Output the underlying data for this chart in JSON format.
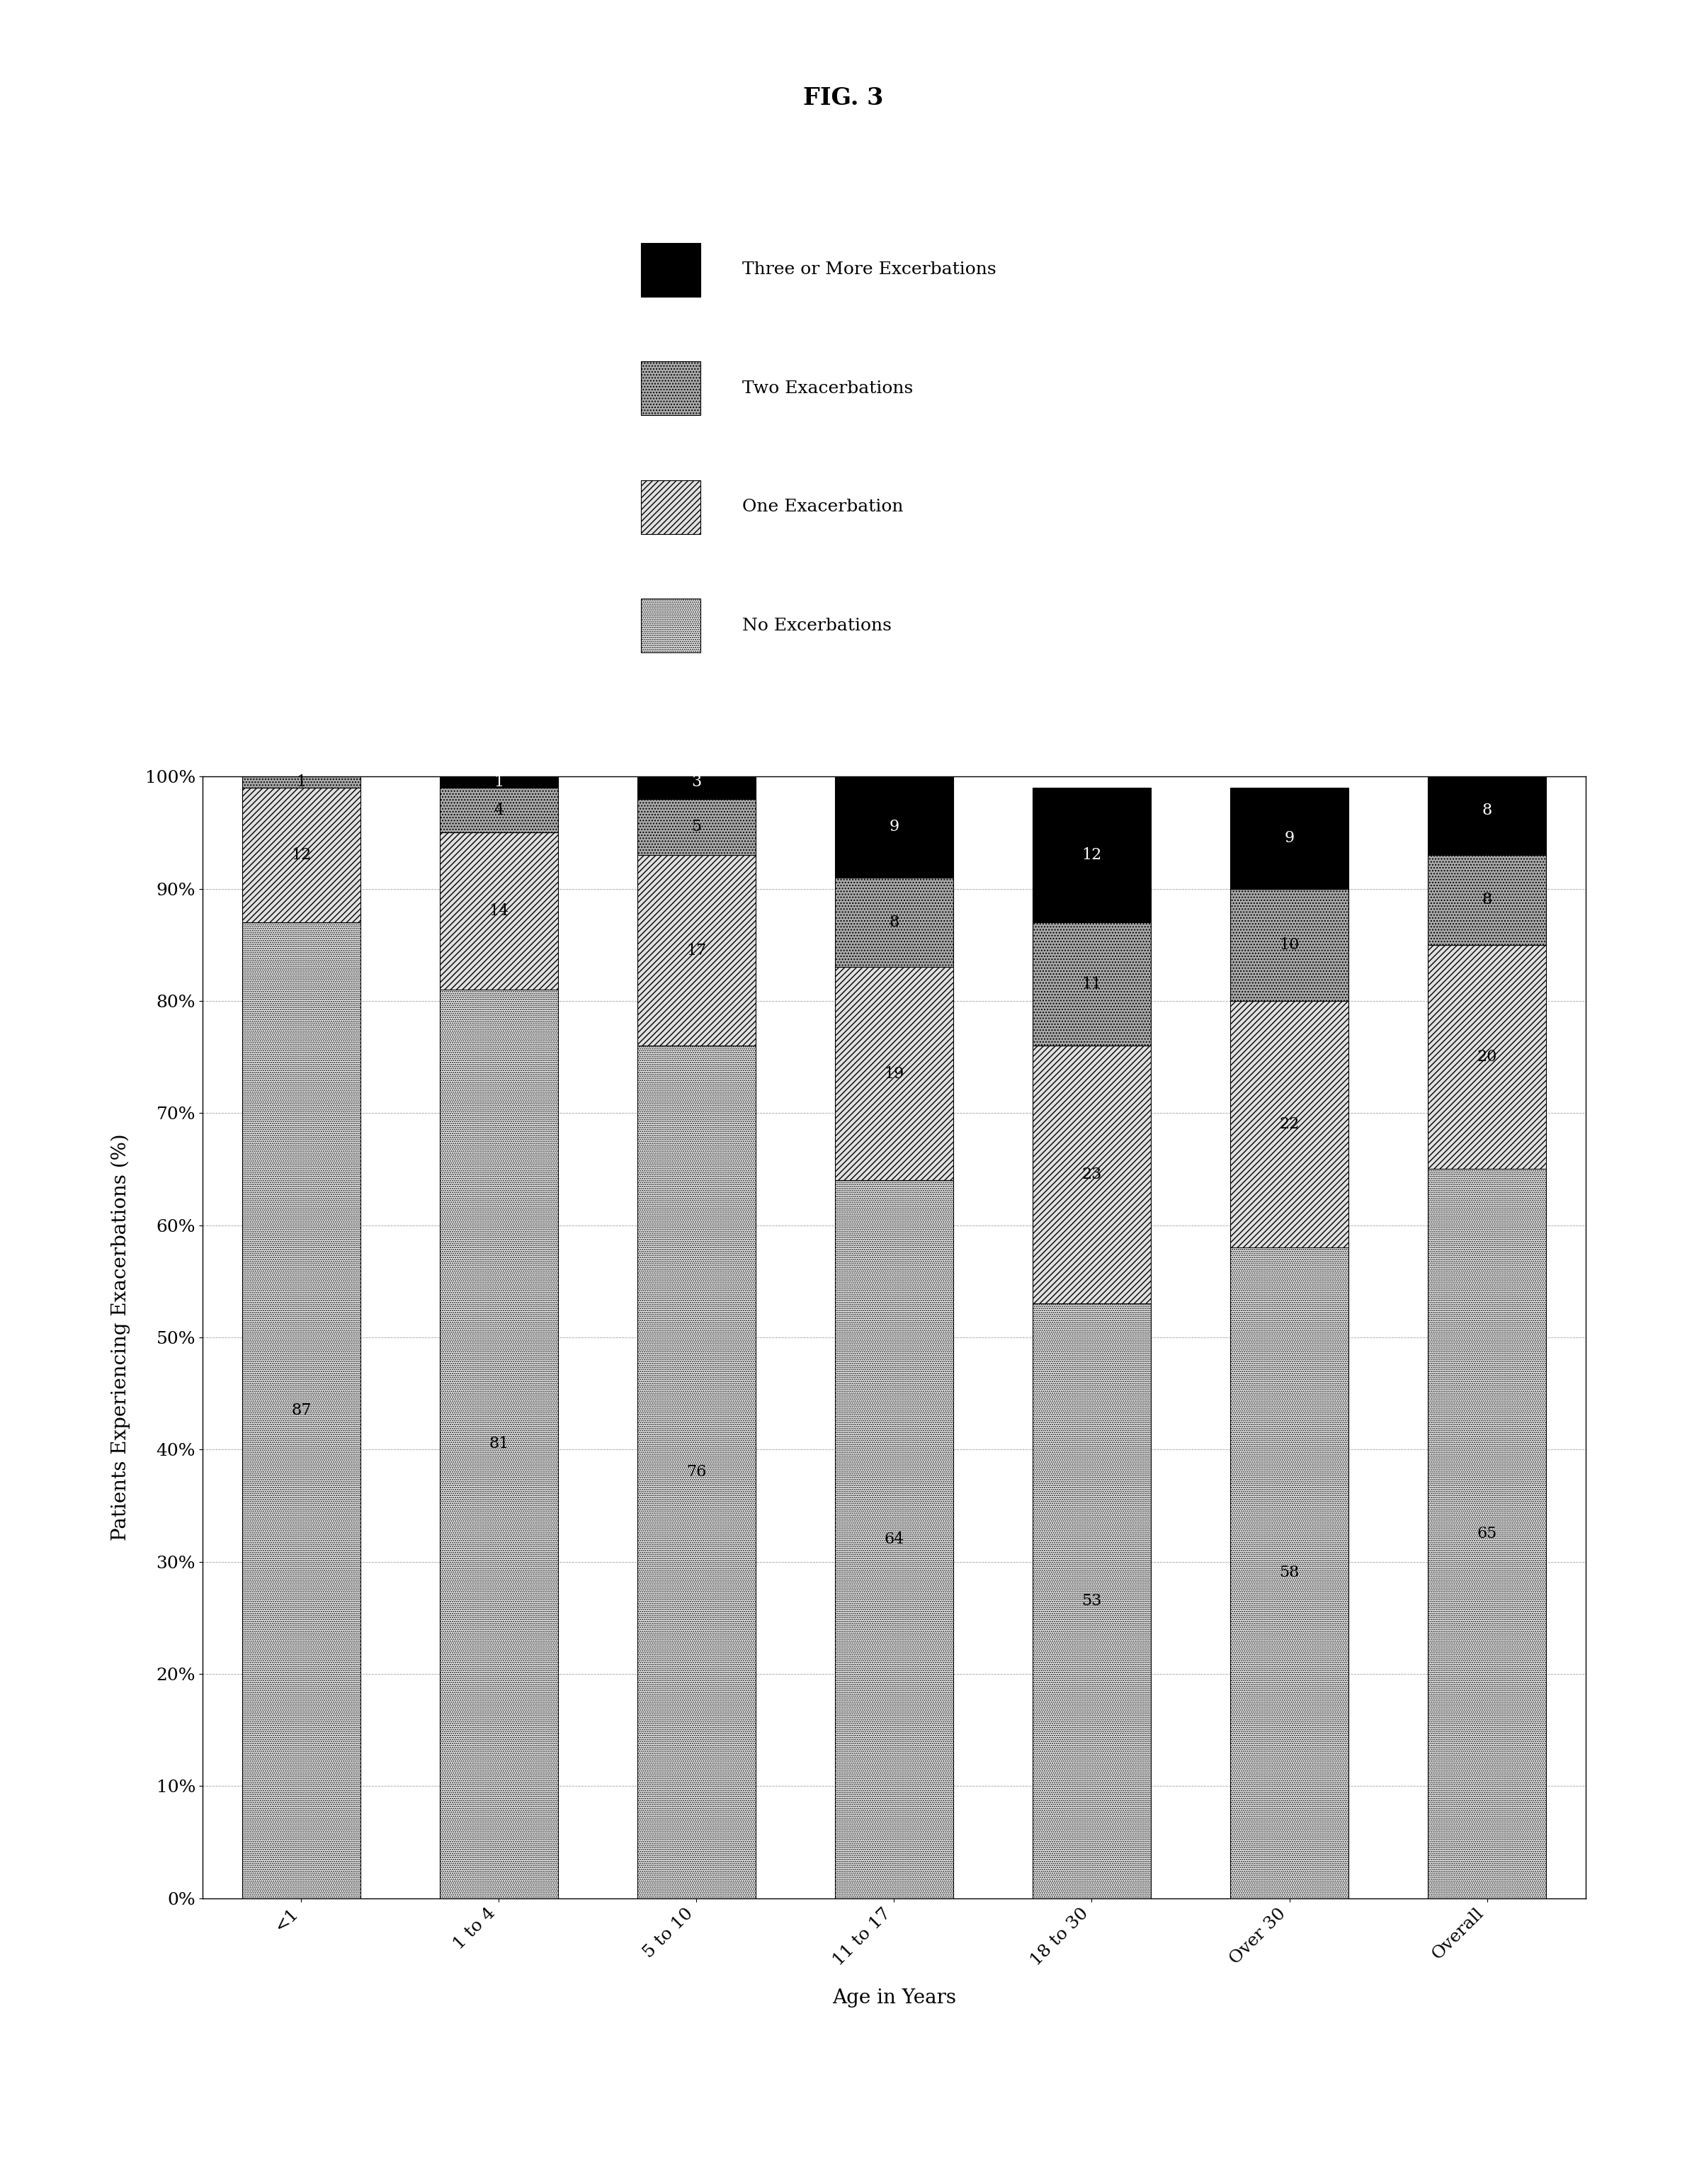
{
  "title": "FIG. 3",
  "categories": [
    "<1",
    "1 to 4",
    "5 to 10",
    "11 to 17",
    "18 to 30",
    "Over 30",
    "Overall"
  ],
  "no_excerbations": [
    87,
    81,
    76,
    64,
    53,
    58,
    65
  ],
  "one_exacerbation": [
    12,
    14,
    17,
    19,
    23,
    22,
    20
  ],
  "two_exacerbations": [
    1,
    4,
    5,
    8,
    11,
    10,
    8
  ],
  "three_or_more": [
    0,
    1,
    3,
    9,
    12,
    9,
    8
  ],
  "xlabel": "Age in Years",
  "ylabel": "Patients Experiencing Exacerbations (%)",
  "legend_labels": [
    "Three or More Excerbations",
    "Two Exacerbations",
    "One Exacerbation",
    "No Excerbations"
  ],
  "no_color": "#ffffff",
  "one_color": "#e0e0e0",
  "two_color": "#aaaaaa",
  "three_color": "#000000",
  "bar_width": 0.6,
  "ylim": [
    0,
    100
  ],
  "label_fontsize": 16,
  "tick_fontsize": 18,
  "axis_label_fontsize": 20,
  "legend_fontsize": 18,
  "title_fontsize": 24
}
